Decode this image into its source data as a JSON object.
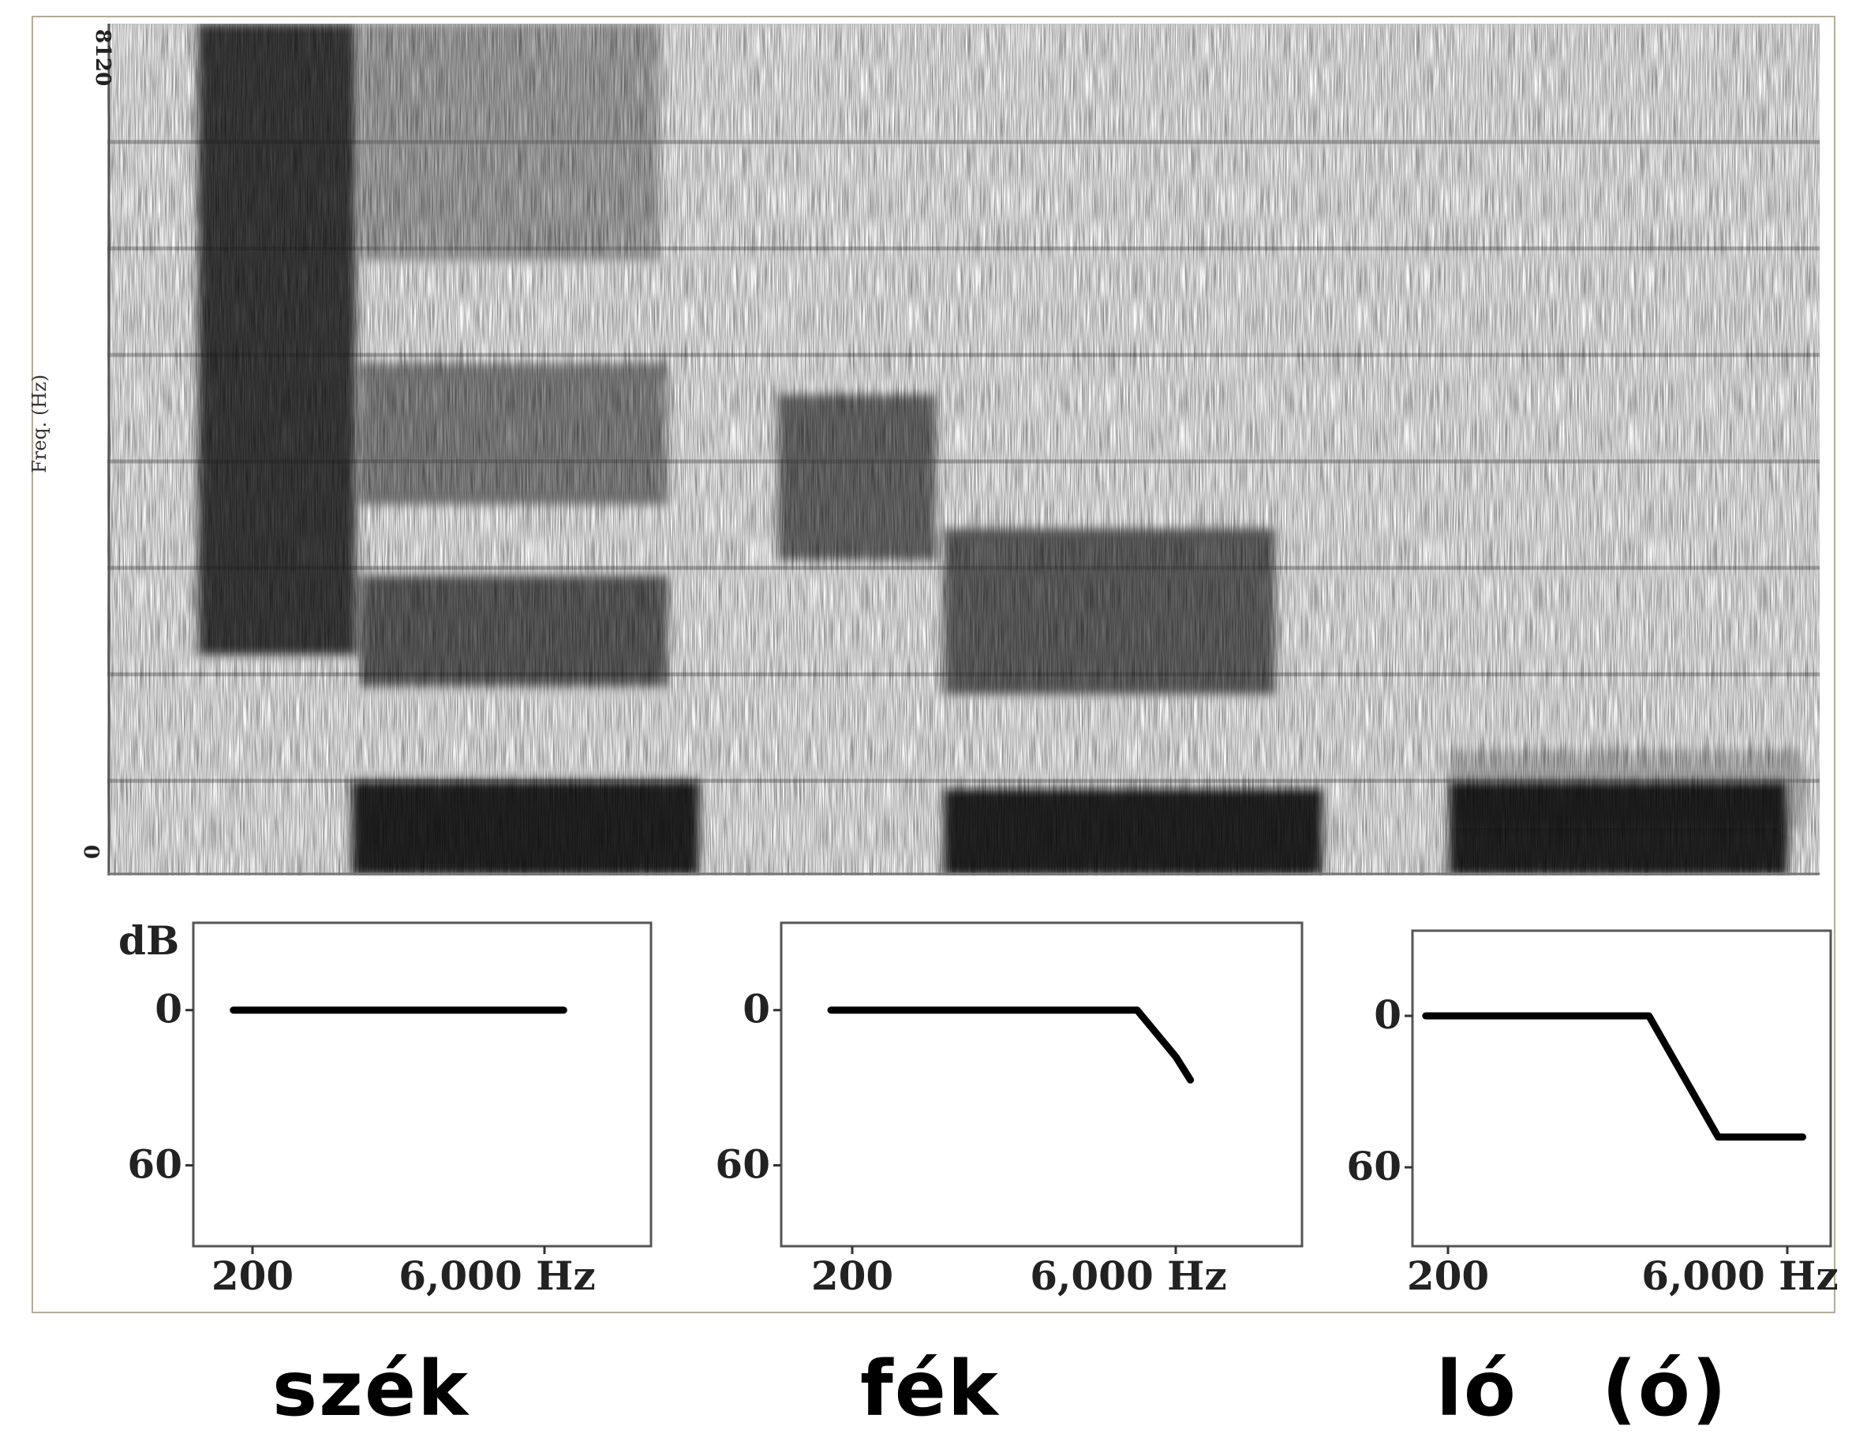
{
  "spectrogram": {
    "ylabel": "Freq. (Hz)",
    "ymax_label": "8120",
    "ymin_label": "0"
  },
  "chart_data": [
    {
      "type": "line",
      "word": "szék",
      "ylabel": "dB",
      "y_ticks": [
        "0",
        "60"
      ],
      "x_ticks": [
        "200",
        "6,000 Hz"
      ],
      "x": [
        150,
        200,
        6000,
        7500
      ],
      "y": [
        0,
        0,
        0,
        0
      ],
      "ylim": [
        0,
        80
      ]
    },
    {
      "type": "line",
      "word": "fék",
      "ylabel": "",
      "y_ticks": [
        "0",
        "60"
      ],
      "x_ticks": [
        "200",
        "6,000 Hz"
      ],
      "x": [
        150,
        200,
        4000,
        6000,
        7000
      ],
      "y": [
        0,
        0,
        0,
        18,
        27
      ],
      "ylim": [
        0,
        80
      ]
    },
    {
      "type": "line",
      "word": "ló (ó)",
      "ylabel": "",
      "y_ticks": [
        "0",
        "60"
      ],
      "x_ticks": [
        "200",
        "6,000 Hz"
      ],
      "x": [
        150,
        200,
        1500,
        3000,
        6000,
        7000
      ],
      "y": [
        0,
        0,
        0,
        48,
        48,
        48
      ],
      "ylim": [
        0,
        80
      ]
    }
  ],
  "captions": {
    "word1": "szék",
    "word2": "fék",
    "word3": "ló",
    "word3_paren": "(ó)"
  }
}
